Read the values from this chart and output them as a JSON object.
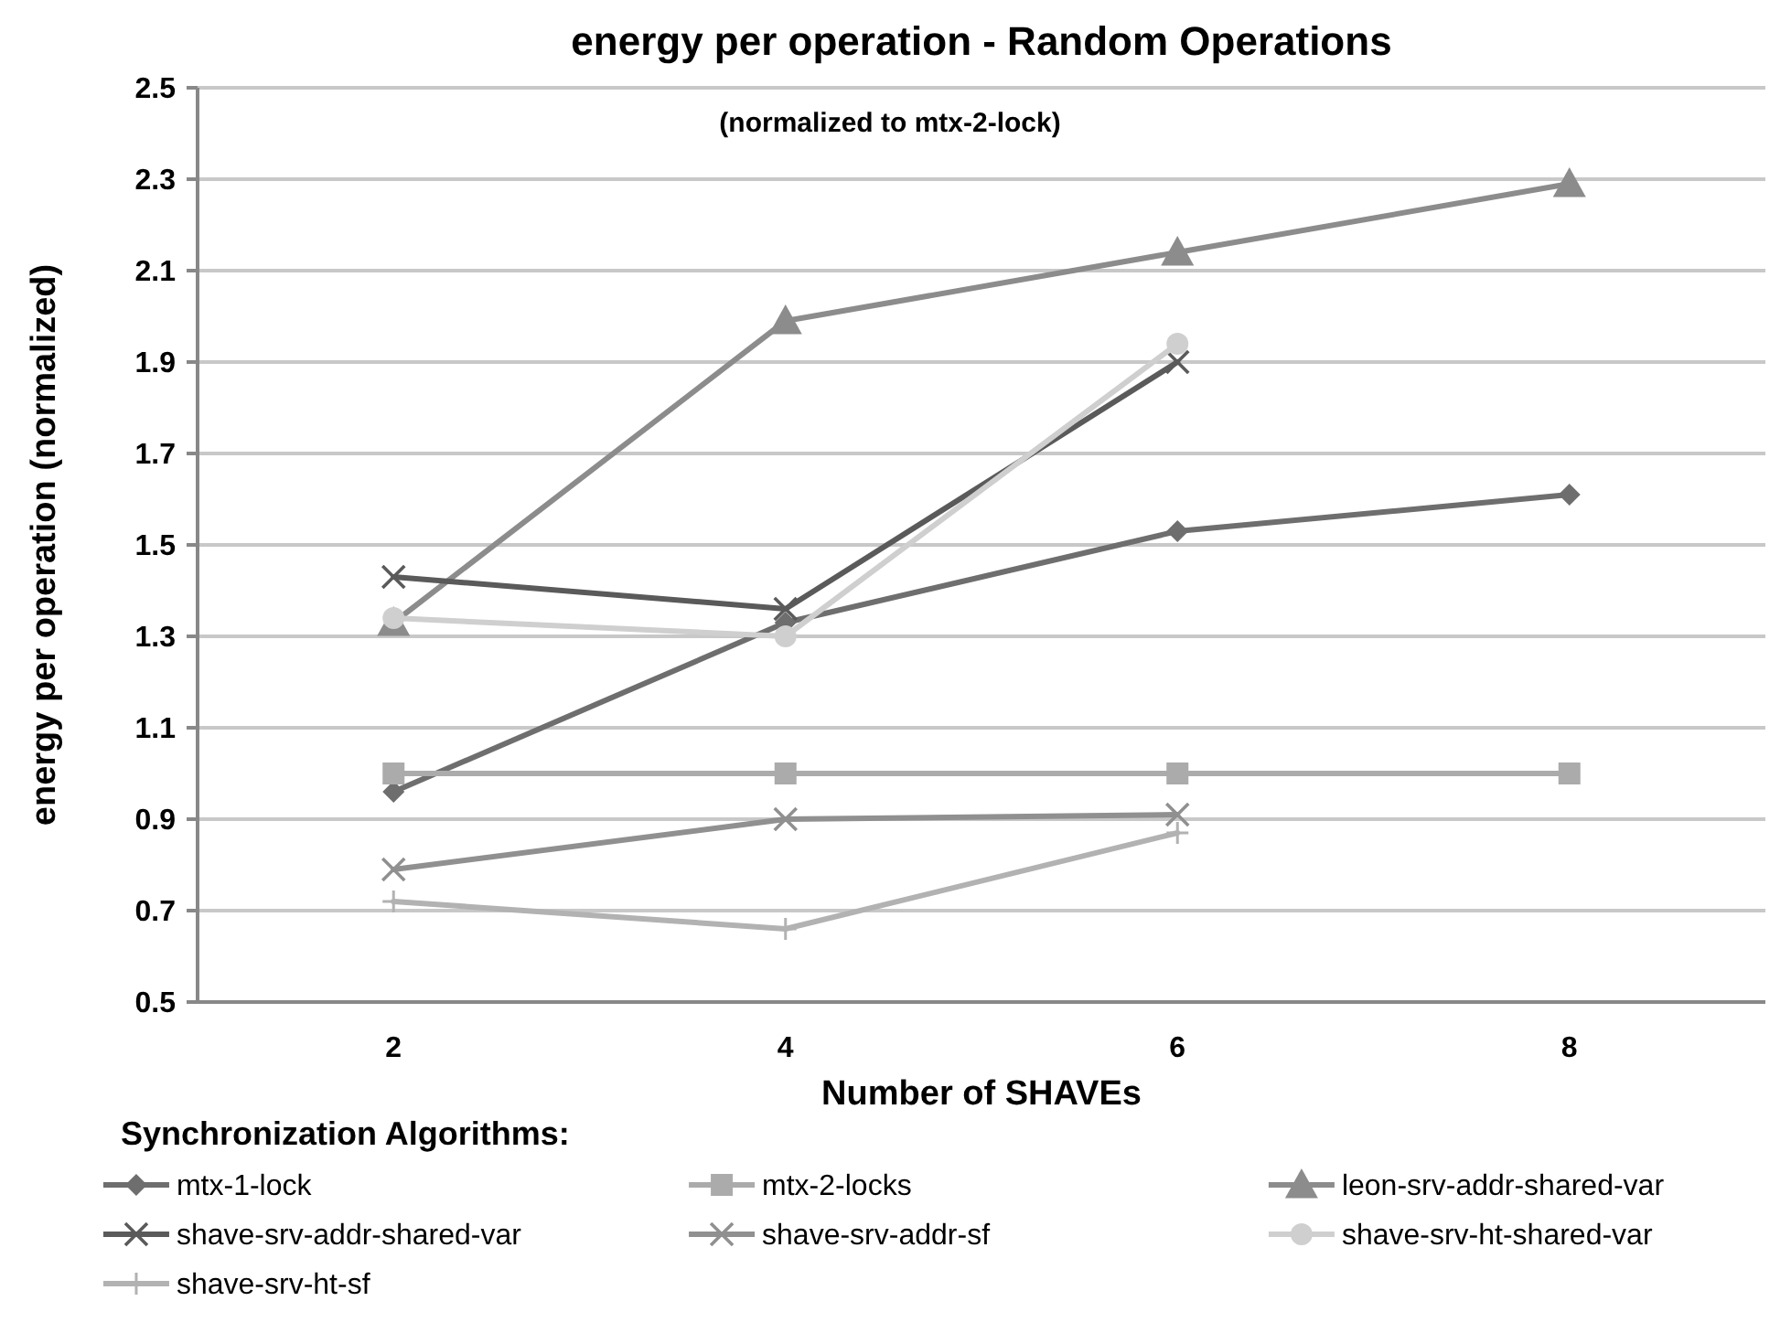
{
  "chart_data": {
    "type": "line",
    "title": "energy per operation - Random Operations",
    "subtitle": "(normalized to mtx-2-lock)",
    "xlabel": "Number of SHAVEs",
    "ylabel": "energy per operation (normalized)",
    "legend_title": "Synchronization Algorithms:",
    "legend": "bottom",
    "grid": "y",
    "categories": [
      "2",
      "4",
      "6",
      "8"
    ],
    "ylim": [
      0.5,
      2.5
    ],
    "yticks": [
      0.5,
      0.7,
      0.9,
      1.1,
      1.3,
      1.5,
      1.7,
      1.9,
      2.1,
      2.3,
      2.5
    ],
    "series": [
      {
        "name": "mtx-1-lock",
        "color": "#6e6e6e",
        "marker": "diamond",
        "values": [
          0.96,
          1.33,
          1.53,
          1.61
        ]
      },
      {
        "name": "mtx-2-locks",
        "color": "#ababab",
        "marker": "square",
        "values": [
          1.0,
          1.0,
          1.0,
          1.0
        ]
      },
      {
        "name": "leon-srv-addr-shared-var",
        "color": "#8c8c8c",
        "marker": "triangle",
        "values": [
          1.33,
          1.99,
          2.14,
          2.29
        ]
      },
      {
        "name": "shave-srv-addr-shared-var",
        "color": "#5a5a5a",
        "marker": "cross",
        "values": [
          1.43,
          1.36,
          1.9,
          null
        ]
      },
      {
        "name": "shave-srv-addr-sf",
        "color": "#909090",
        "marker": "cross",
        "values": [
          0.79,
          0.9,
          0.91,
          null
        ]
      },
      {
        "name": "shave-srv-ht-shared-var",
        "color": "#cfcfcf",
        "marker": "circle",
        "values": [
          1.34,
          1.3,
          1.94,
          null
        ]
      },
      {
        "name": "shave-srv-ht-sf",
        "color": "#b2b2b2",
        "marker": "plus",
        "values": [
          0.72,
          0.66,
          0.87,
          null
        ]
      }
    ]
  }
}
